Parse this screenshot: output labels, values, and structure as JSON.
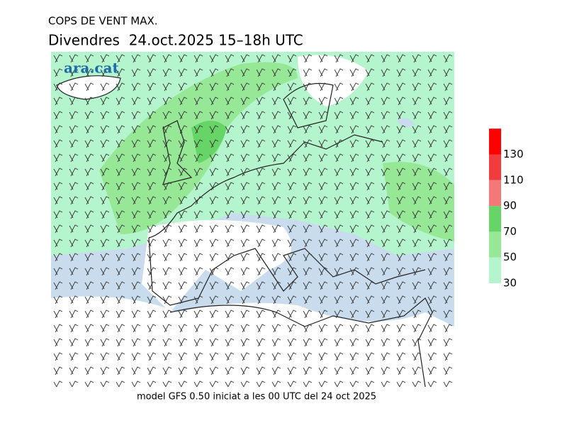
{
  "header": {
    "title": "COPS DE VENT MAX.",
    "subtitle": "Divendres  24.oct.2025 15–18h UTC"
  },
  "logo": "ara.cat",
  "footer": "model GFS 0.50 iniciat a les 00 UTC del 24 oct 2025",
  "legend": {
    "ticks": [
      30,
      50,
      70,
      90,
      110,
      130
    ],
    "colors": [
      "#b4f5cd",
      "#96e896",
      "#66d466",
      "#f57878",
      "#f03c3c",
      "#ff0000"
    ]
  }
}
